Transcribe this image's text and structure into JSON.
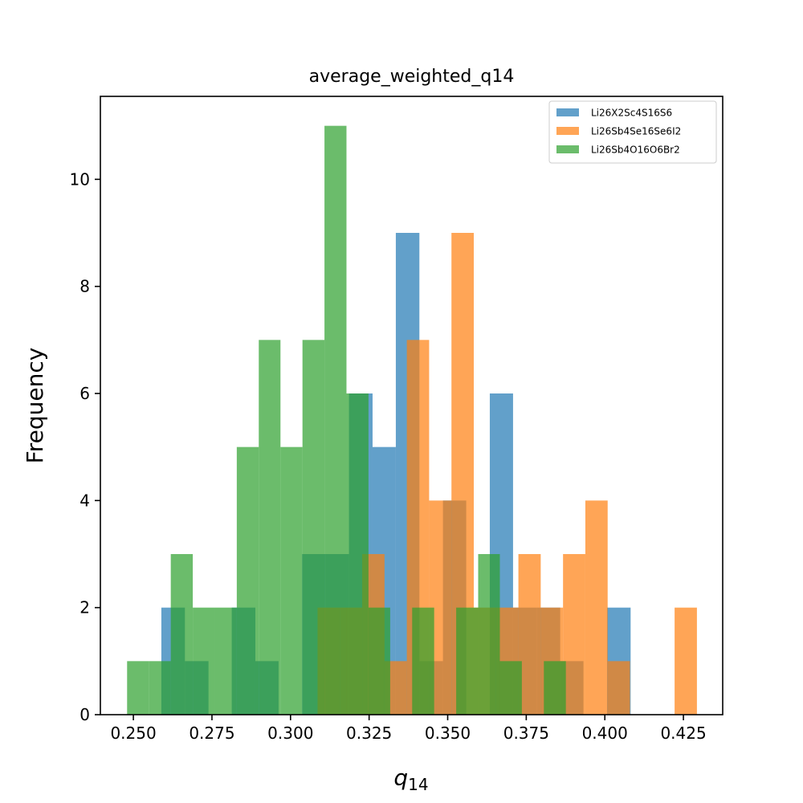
{
  "chart_data": {
    "type": "histogram",
    "title": "average_weighted_q14",
    "xlabel_base": "q",
    "xlabel_sub": "14",
    "ylabel": "Frequency",
    "xlim": [
      0.2395,
      0.4375
    ],
    "ylim": [
      0,
      11.55
    ],
    "xticks": [
      0.25,
      0.275,
      0.3,
      0.325,
      0.35,
      0.375,
      0.4,
      0.425
    ],
    "xtick_labels": [
      "0.250",
      "0.275",
      "0.300",
      "0.325",
      "0.350",
      "0.375",
      "0.400",
      "0.425"
    ],
    "yticks": [
      0,
      2,
      4,
      6,
      8,
      10
    ],
    "ytick_labels": [
      "0",
      "2",
      "4",
      "6",
      "8",
      "10"
    ],
    "legend_position": "top-right",
    "bar_alpha": 0.7,
    "series": [
      {
        "name": "Li26X2Sc4S16S6",
        "color": "#1f77b4",
        "bin_edges": [
          0.2589,
          0.2664,
          0.2739,
          0.2813,
          0.2888,
          0.2962,
          0.3037,
          0.3112,
          0.3186,
          0.3261,
          0.3335,
          0.341,
          0.3485,
          0.3559,
          0.3634,
          0.3708,
          0.3783,
          0.3858,
          0.3932,
          0.4007,
          0.4082
        ],
        "counts": [
          2,
          1,
          0,
          2,
          1,
          0,
          3,
          3,
          6,
          5,
          9,
          1,
          4,
          0,
          6,
          2,
          2,
          1,
          0,
          2
        ]
      },
      {
        "name": "Li26Sb4Se16Se6I2",
        "color": "#ff7f0e",
        "bin_edges": [
          0.3086,
          0.3157,
          0.3228,
          0.3299,
          0.337,
          0.3441,
          0.3512,
          0.3583,
          0.3654,
          0.3725,
          0.3796,
          0.3867,
          0.3938,
          0.4009,
          0.408,
          0.4151,
          0.4222,
          0.4293
        ],
        "counts": [
          2,
          2,
          3,
          1,
          7,
          4,
          9,
          2,
          2,
          3,
          2,
          3,
          4,
          1,
          0,
          0,
          2
        ]
      },
      {
        "name": "Li26Sb4O16O6Br2",
        "color": "#2ca02c",
        "bin_edges": [
          0.248,
          0.255,
          0.2619,
          0.2689,
          0.2759,
          0.2829,
          0.2899,
          0.2968,
          0.3038,
          0.3108,
          0.3178,
          0.3248,
          0.3317,
          0.3387,
          0.3457,
          0.3527,
          0.3597,
          0.3666,
          0.3736,
          0.3806,
          0.3876
        ],
        "counts": [
          1,
          1,
          3,
          2,
          2,
          5,
          7,
          5,
          7,
          11,
          6,
          2,
          0,
          2,
          0,
          2,
          3,
          1,
          0,
          1
        ]
      }
    ]
  }
}
